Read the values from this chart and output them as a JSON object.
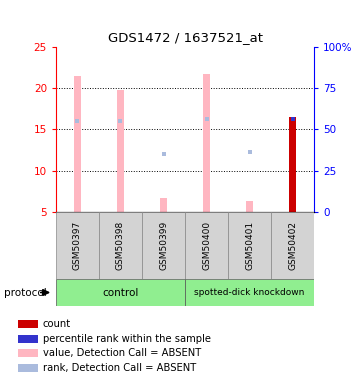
{
  "title": "GDS1472 / 1637521_at",
  "samples": [
    "GSM50397",
    "GSM50398",
    "GSM50399",
    "GSM50400",
    "GSM50401",
    "GSM50402"
  ],
  "ylim_left": [
    5,
    25
  ],
  "ylim_right": [
    0,
    100
  ],
  "yticks_left": [
    5,
    10,
    15,
    20,
    25
  ],
  "yticks_right": [
    0,
    25,
    50,
    75,
    100
  ],
  "ytick_labels_right": [
    "0",
    "25",
    "50",
    "75",
    "100%"
  ],
  "bar_values": [
    21.5,
    19.8,
    6.7,
    21.7,
    6.3,
    16.5
  ],
  "bar_bottom": 5,
  "rank_dots_y": [
    16.0,
    16.0,
    12.0,
    16.3,
    12.3,
    16.2
  ],
  "bar_color_absent": "#FFB6C1",
  "bar_color_present": "#CC0000",
  "rank_color_absent": "#AABBDD",
  "rank_color_present": "#3333CC",
  "absent_flags": [
    true,
    true,
    true,
    true,
    true,
    false
  ],
  "bar_width": 0.15,
  "bar_zorder": 2,
  "legend": [
    {
      "color": "#CC0000",
      "label": "count"
    },
    {
      "color": "#3333CC",
      "label": "percentile rank within the sample"
    },
    {
      "color": "#FFB6C1",
      "label": "value, Detection Call = ABSENT"
    },
    {
      "color": "#AABBDD",
      "label": "rank, Detection Call = ABSENT"
    }
  ],
  "group_control_label": "control",
  "group_kd_label": "spotted-dick knockdown",
  "group_color": "#90EE90",
  "protocol_label": "protocol",
  "bg_color": "#FFFFFF"
}
